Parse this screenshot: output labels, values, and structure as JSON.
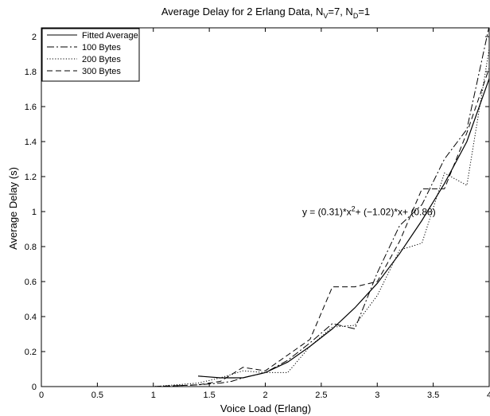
{
  "chart_data": {
    "type": "line",
    "title": {
      "main": "Average Delay for 2 Erlang Data, N",
      "sub1": "V",
      "mid": "=7, N",
      "sub2": "D",
      "end": "=1"
    },
    "xlabel": "Voice Load (Erlang)",
    "ylabel": "Average Delay (s)",
    "xlim": [
      0,
      4
    ],
    "ylim": [
      0,
      2.05
    ],
    "xticks": [
      0,
      0.5,
      1,
      1.5,
      2,
      2.5,
      3,
      3.5,
      4
    ],
    "xtick_labels": [
      "0",
      "0.5",
      "1",
      "1.5",
      "2",
      "2.5",
      "3",
      "3.5",
      "4"
    ],
    "yticks": [
      0,
      0.2,
      0.4,
      0.6,
      0.8,
      1,
      1.2,
      1.4,
      1.6,
      1.8,
      2
    ],
    "ytick_labels": [
      "0",
      "0.2",
      "0.4",
      "0.6",
      "0.8",
      "1",
      "1.2",
      "1.4",
      "1.6",
      "1.8",
      "2"
    ],
    "grid": false,
    "legend_position": "top-left",
    "annotation": {
      "pre": "y = (0.31)*x",
      "sup": "2",
      "post": "+ (−1.02)*x+ (0.88)",
      "x": 2.33,
      "y": 0.98
    },
    "series": [
      {
        "name": "Fitted Average",
        "style": "solid",
        "x": [
          1.4,
          1.6,
          1.8,
          2.0,
          2.2,
          2.4,
          2.6,
          2.8,
          3.0,
          3.2,
          3.4,
          3.6,
          3.8,
          4.0
        ],
        "y": [
          0.06,
          0.05,
          0.05,
          0.08,
          0.14,
          0.23,
          0.33,
          0.45,
          0.59,
          0.76,
          0.95,
          1.16,
          1.4,
          1.76
        ]
      },
      {
        "name": "100 Bytes",
        "style": "dashdot",
        "x": [
          0,
          1.0,
          1.4,
          1.6,
          1.7,
          1.8,
          2.0,
          2.2,
          2.4,
          2.6,
          2.8,
          3.0,
          3.2,
          3.4,
          3.6,
          3.8,
          4.0
        ],
        "y": [
          0,
          0,
          0.01,
          0.02,
          0.03,
          0.05,
          0.08,
          0.15,
          0.25,
          0.36,
          0.33,
          0.65,
          0.92,
          1.04,
          1.3,
          1.47,
          2.06
        ]
      },
      {
        "name": "200 Bytes",
        "style": "dotted",
        "x": [
          0,
          1.0,
          1.2,
          1.4,
          1.6,
          1.8,
          2.0,
          2.2,
          2.4,
          2.6,
          2.8,
          3.0,
          3.2,
          3.4,
          3.6,
          3.8,
          4.0
        ],
        "y": [
          0,
          0,
          0.01,
          0.02,
          0.05,
          0.09,
          0.08,
          0.08,
          0.23,
          0.34,
          0.35,
          0.52,
          0.78,
          0.82,
          1.22,
          1.15,
          1.93
        ]
      },
      {
        "name": "300 Bytes",
        "style": "dashed",
        "x": [
          0,
          1.0,
          1.4,
          1.6,
          1.8,
          2.0,
          2.2,
          2.4,
          2.6,
          2.8,
          3.0,
          3.2,
          3.4,
          3.6,
          3.8,
          4.0
        ],
        "y": [
          0,
          0,
          0.01,
          0.03,
          0.11,
          0.09,
          0.18,
          0.27,
          0.57,
          0.57,
          0.6,
          0.83,
          1.13,
          1.13,
          1.45,
          1.82
        ]
      }
    ]
  }
}
